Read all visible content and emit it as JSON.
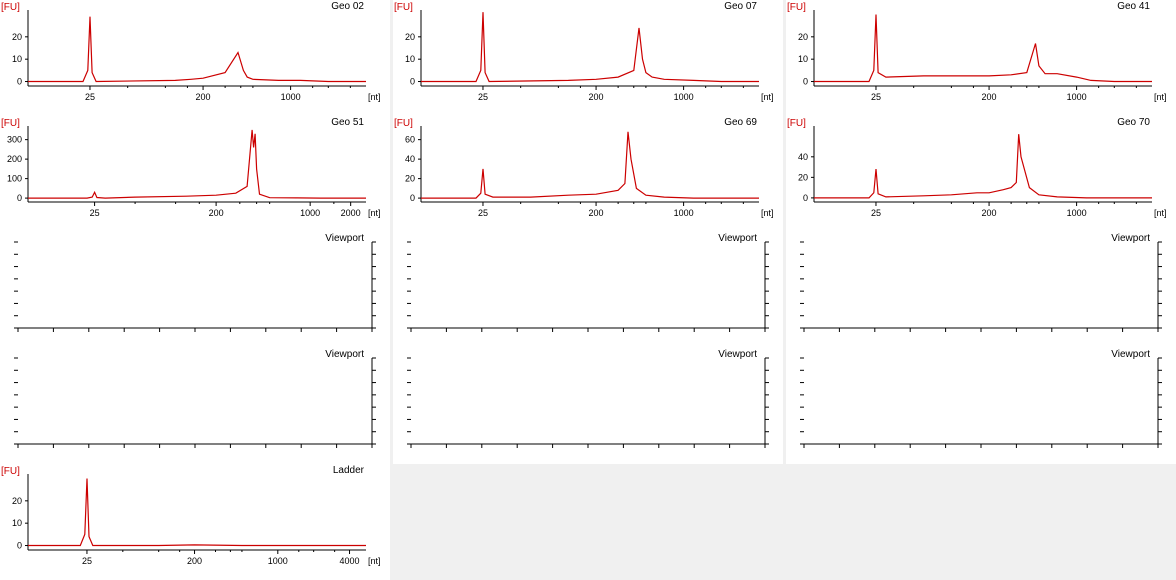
{
  "y_unit": "[FU]",
  "x_unit": "[nt]",
  "colors": {
    "trace": "#cc0000",
    "background": "#f0f0f0",
    "panel": "#ffffff"
  },
  "panels": [
    {
      "title": "Geo 02",
      "blank": false
    },
    {
      "title": "Geo 07",
      "blank": false
    },
    {
      "title": "Geo 41",
      "blank": false
    },
    {
      "title": "Geo 51",
      "blank": false
    },
    {
      "title": "Geo 69",
      "blank": false
    },
    {
      "title": "Geo 70",
      "blank": false
    },
    {
      "title": "Viewport",
      "blank": true
    },
    {
      "title": "Viewport",
      "blank": true
    },
    {
      "title": "Viewport",
      "blank": true
    },
    {
      "title": "Viewport",
      "blank": true
    },
    {
      "title": "Viewport",
      "blank": true
    },
    {
      "title": "Viewport",
      "blank": true
    },
    {
      "title": "Ladder",
      "blank": false
    }
  ],
  "chart_data": [
    {
      "type": "line",
      "title": "Geo 02",
      "ylabel": "[FU]",
      "xlabel": "[nt]",
      "yticks": [
        0,
        10,
        20
      ],
      "ylim": [
        -2,
        32
      ],
      "xticks": [
        "25",
        "200",
        "1000"
      ],
      "xlim_log": [
        8,
        4000
      ],
      "series": [
        {
          "x": [
            8,
            22,
            24,
            25,
            26,
            28,
            120,
            160,
            200,
            300,
            380,
            420,
            450,
            500,
            800,
            1200,
            2000,
            4000
          ],
          "y": [
            0,
            0,
            5,
            29,
            4,
            0,
            0.5,
            1,
            1.5,
            4,
            13,
            5,
            2,
            1,
            0.5,
            0.5,
            0,
            0
          ]
        }
      ]
    },
    {
      "type": "line",
      "title": "Geo 07",
      "ylabel": "[FU]",
      "xlabel": "[nt]",
      "yticks": [
        0,
        10,
        20
      ],
      "ylim": [
        -2,
        32
      ],
      "xticks": [
        "25",
        "200",
        "1000"
      ],
      "xlim_log": [
        8,
        4000
      ],
      "series": [
        {
          "x": [
            8,
            22,
            24,
            25,
            26,
            28,
            120,
            200,
            300,
            400,
            440,
            470,
            500,
            560,
            700,
            1200,
            2000,
            4000
          ],
          "y": [
            0,
            0,
            5,
            31,
            4,
            0,
            0.5,
            1,
            2,
            5,
            24,
            10,
            4,
            2,
            1,
            0.5,
            0,
            0
          ]
        }
      ]
    },
    {
      "type": "line",
      "title": "Geo 41",
      "ylabel": "[FU]",
      "xlabel": "[nt]",
      "yticks": [
        0,
        10,
        20
      ],
      "ylim": [
        -2,
        32
      ],
      "xticks": [
        "25",
        "200",
        "1000"
      ],
      "xlim_log": [
        8,
        4000
      ],
      "series": [
        {
          "x": [
            8,
            22,
            24,
            25,
            26,
            30,
            60,
            120,
            200,
            300,
            400,
            470,
            500,
            560,
            700,
            1000,
            1300,
            2000,
            4000
          ],
          "y": [
            0,
            0,
            5,
            30,
            4,
            2,
            2.5,
            2.5,
            2.5,
            3,
            4,
            17,
            7,
            3.5,
            3.5,
            2,
            0.5,
            0,
            0
          ]
        }
      ]
    },
    {
      "type": "line",
      "title": "Geo 51",
      "ylabel": "[FU]",
      "xlabel": "[nt]",
      "yticks": [
        0,
        100,
        200,
        300
      ],
      "ylim": [
        -20,
        370
      ],
      "xticks": [
        "25",
        "200",
        "1000",
        "2000"
      ],
      "xlim_log": [
        8,
        2600
      ],
      "series": [
        {
          "x": [
            8,
            22,
            24,
            25,
            26,
            30,
            50,
            120,
            200,
            280,
            340,
            370,
            380,
            390,
            400,
            420,
            500,
            800,
            1200,
            2600
          ],
          "y": [
            0,
            0,
            5,
            30,
            3,
            0,
            5,
            10,
            15,
            25,
            60,
            350,
            260,
            330,
            150,
            20,
            2,
            1,
            0,
            0
          ]
        }
      ]
    },
    {
      "type": "line",
      "title": "Geo 69",
      "ylabel": "[FU]",
      "xlabel": "[nt]",
      "yticks": [
        0,
        20,
        40,
        60
      ],
      "ylim": [
        -4,
        74
      ],
      "xticks": [
        "25",
        "200",
        "1000"
      ],
      "xlim_log": [
        8,
        4000
      ],
      "series": [
        {
          "x": [
            8,
            22,
            24,
            25,
            26,
            30,
            60,
            120,
            200,
            300,
            340,
            360,
            380,
            420,
            500,
            700,
            1200,
            4000
          ],
          "y": [
            0,
            0,
            5,
            30,
            4,
            1,
            1,
            3,
            4,
            8,
            15,
            68,
            40,
            10,
            3,
            1,
            0,
            0
          ]
        }
      ]
    },
    {
      "type": "line",
      "title": "Geo 70",
      "ylabel": "[FU]",
      "xlabel": "[nt]",
      "yticks": [
        0,
        20,
        40
      ],
      "ylim": [
        -4,
        70
      ],
      "xticks": [
        "25",
        "200",
        "1000"
      ],
      "xlim_log": [
        8,
        4000
      ],
      "series": [
        {
          "x": [
            8,
            22,
            24,
            25,
            26,
            30,
            60,
            100,
            160,
            200,
            260,
            300,
            330,
            345,
            360,
            420,
            500,
            700,
            1200,
            4000
          ],
          "y": [
            0,
            0,
            5,
            28,
            4,
            1,
            2,
            3,
            5,
            5,
            8,
            10,
            15,
            62,
            40,
            10,
            3,
            1,
            0,
            0
          ]
        }
      ]
    },
    {
      "type": "line",
      "title": "Ladder",
      "ylabel": "[FU]",
      "xlabel": "[nt]",
      "yticks": [
        0,
        10,
        20
      ],
      "ylim": [
        -2,
        32
      ],
      "xticks": [
        "25",
        "200",
        "1000",
        "4000"
      ],
      "xlim_log": [
        8,
        5500
      ],
      "series": [
        {
          "x": [
            8,
            22,
            24,
            25,
            26,
            28,
            100,
            200,
            500,
            1000,
            4000,
            5500
          ],
          "y": [
            0,
            0,
            5,
            30,
            4,
            0,
            0,
            0.3,
            0,
            0,
            0,
            0
          ]
        }
      ]
    }
  ]
}
